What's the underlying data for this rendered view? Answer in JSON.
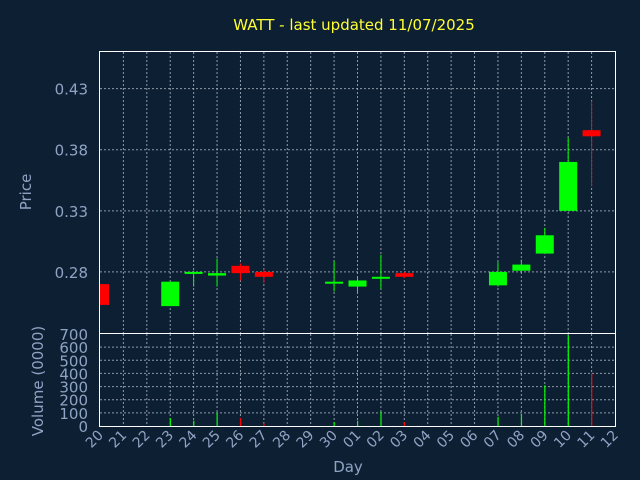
{
  "chart_data": {
    "type": "candlestick",
    "title": "WATT - last updated 11/07/2025",
    "xlabel": "Day",
    "ylabel_price": "Price",
    "ylabel_volume": "Volume (0000)",
    "x_ticks": [
      "20",
      "21",
      "22",
      "23",
      "24",
      "25",
      "26",
      "27",
      "28",
      "29",
      "30",
      "01",
      "02",
      "03",
      "04",
      "05",
      "06",
      "07",
      "08",
      "09",
      "10",
      "11",
      "12"
    ],
    "price_ticks": [
      "0.43",
      "0.38",
      "0.33",
      "0.28"
    ],
    "price_tick_values": [
      0.43,
      0.38,
      0.33,
      0.28
    ],
    "price_ylim": [
      0.23,
      0.46
    ],
    "volume_ticks": [
      "700",
      "600",
      "500",
      "400",
      "300",
      "200",
      "100",
      "0"
    ],
    "volume_tick_values": [
      700,
      600,
      500,
      400,
      300,
      200,
      100,
      0
    ],
    "volume_ylim": [
      0,
      700
    ],
    "grid": true,
    "colors": {
      "up": "#00ff00",
      "down": "#ff0000",
      "background": "#0d1f33",
      "title": "#ffff33",
      "axis_text": "#8fa4c4"
    },
    "candles": [
      {
        "day": "20",
        "open": 0.27,
        "close": 0.253,
        "high": 0.27,
        "low": 0.253,
        "volume": 0
      },
      {
        "day": "23",
        "open": 0.252,
        "close": 0.272,
        "high": 0.272,
        "low": 0.252,
        "volume": 60
      },
      {
        "day": "24",
        "open": 0.279,
        "close": 0.28,
        "high": 0.281,
        "low": 0.268,
        "volume": 40
      },
      {
        "day": "25",
        "open": 0.277,
        "close": 0.279,
        "high": 0.291,
        "low": 0.268,
        "volume": 100
      },
      {
        "day": "26",
        "open": 0.285,
        "close": 0.279,
        "high": 0.287,
        "low": 0.273,
        "volume": 60
      },
      {
        "day": "27",
        "open": 0.28,
        "close": 0.276,
        "high": 0.282,
        "low": 0.271,
        "volume": 20
      },
      {
        "day": "30",
        "open": 0.272,
        "close": 0.272,
        "high": 0.289,
        "low": 0.264,
        "volume": 30
      },
      {
        "day": "01",
        "open": 0.268,
        "close": 0.273,
        "high": 0.275,
        "low": 0.262,
        "volume": 40
      },
      {
        "day": "02",
        "open": 0.275,
        "close": 0.276,
        "high": 0.294,
        "low": 0.266,
        "volume": 110
      },
      {
        "day": "03",
        "open": 0.279,
        "close": 0.276,
        "high": 0.28,
        "low": 0.275,
        "volume": 30
      },
      {
        "day": "07",
        "open": 0.269,
        "close": 0.28,
        "high": 0.288,
        "low": 0.268,
        "volume": 70
      },
      {
        "day": "08",
        "open": 0.281,
        "close": 0.286,
        "high": 0.29,
        "low": 0.28,
        "volume": 90
      },
      {
        "day": "09",
        "open": 0.295,
        "close": 0.31,
        "high": 0.316,
        "low": 0.295,
        "volume": 310
      },
      {
        "day": "10",
        "open": 0.33,
        "close": 0.37,
        "high": 0.39,
        "low": 0.33,
        "volume": 690
      },
      {
        "day": "11",
        "open": 0.396,
        "close": 0.391,
        "high": 0.42,
        "low": 0.35,
        "volume": 400
      }
    ]
  }
}
